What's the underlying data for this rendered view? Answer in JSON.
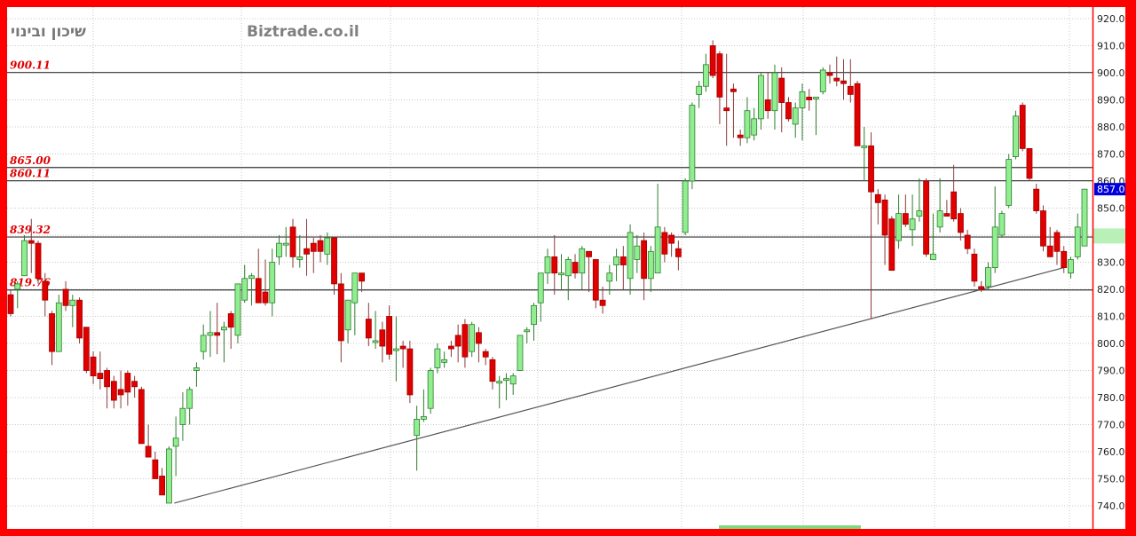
{
  "header": {
    "stock_name": "שיכון ובינוי",
    "brand": "Biztrade.co.il"
  },
  "chart_data": {
    "type": "candlestick",
    "title": "",
    "ylim": [
      735,
      923
    ],
    "y_ticks": [
      "920.0",
      "910.0",
      "900.0",
      "890.0",
      "880.0",
      "870.0",
      "860.0",
      "850.0",
      "840.0",
      "830.0",
      "820.0",
      "810.0",
      "800.0",
      "790.0",
      "780.0",
      "770.0",
      "760.0",
      "750.0",
      "740.0"
    ],
    "grid": true,
    "last_price_label": "857.0",
    "colors": {
      "up": "#90ee90",
      "down": "#e00000",
      "last_price_bg": "#0000dd",
      "frame": "#ff0000"
    },
    "levels": [
      {
        "value": 900.11,
        "label": "900.11"
      },
      {
        "value": 865.0,
        "label": "865.00"
      },
      {
        "value": 860.11,
        "label": "860.11"
      },
      {
        "value": 839.32,
        "label": "839.32"
      },
      {
        "value": 819.76,
        "label": "819.76"
      }
    ],
    "trendline": {
      "from": [
        23,
        741
      ],
      "to": [
        153,
        828
      ]
    },
    "ohlc": [
      [
        818,
        820,
        810,
        811
      ],
      [
        820,
        823,
        813,
        822
      ],
      [
        825,
        840,
        825,
        838
      ],
      [
        838,
        846,
        826,
        837
      ],
      [
        837,
        838,
        822,
        824
      ],
      [
        823,
        826,
        810,
        816
      ],
      [
        811,
        812,
        792,
        797
      ],
      [
        797,
        818,
        797,
        815
      ],
      [
        820,
        823,
        812,
        814
      ],
      [
        814,
        818,
        806,
        816
      ],
      [
        816,
        817,
        800,
        802
      ],
      [
        806,
        806,
        789,
        790
      ],
      [
        795,
        797,
        785,
        788
      ],
      [
        789,
        797,
        783,
        787
      ],
      [
        790,
        791,
        776,
        784
      ],
      [
        786,
        788,
        776,
        779
      ],
      [
        783,
        790,
        776,
        781
      ],
      [
        789,
        790,
        777,
        782
      ],
      [
        786,
        788,
        780,
        784
      ],
      [
        783,
        784,
        763,
        763
      ],
      [
        762,
        770,
        758,
        758
      ],
      [
        757,
        760,
        750,
        750
      ],
      [
        751,
        754,
        744,
        744
      ],
      [
        741,
        762,
        741,
        761
      ],
      [
        762,
        773,
        751,
        765
      ],
      [
        770,
        782,
        764,
        776
      ],
      [
        776,
        784,
        770,
        783
      ],
      [
        790,
        793,
        784,
        791
      ],
      [
        797,
        807,
        794,
        803
      ],
      [
        803,
        812,
        795,
        804
      ],
      [
        804,
        815,
        796,
        803
      ],
      [
        805,
        808,
        793,
        806
      ],
      [
        811,
        812,
        798,
        806
      ],
      [
        803,
        822,
        800,
        822
      ],
      [
        816,
        829,
        815,
        824
      ],
      [
        824,
        826,
        814,
        825
      ],
      [
        824,
        835,
        815,
        815
      ],
      [
        819,
        831,
        814,
        815
      ],
      [
        815,
        835,
        810,
        830
      ],
      [
        832,
        840,
        829,
        837
      ],
      [
        837,
        843,
        832,
        837
      ],
      [
        843,
        846,
        828,
        832
      ],
      [
        831,
        840,
        828,
        832
      ],
      [
        835,
        846,
        825,
        833
      ],
      [
        837,
        839,
        826,
        834
      ],
      [
        838,
        840,
        830,
        834
      ],
      [
        833,
        841,
        829,
        839
      ],
      [
        839,
        839,
        818,
        822
      ],
      [
        822,
        826,
        793,
        801
      ],
      [
        805,
        816,
        800,
        816
      ],
      [
        815,
        826,
        803,
        826
      ],
      [
        826,
        826,
        819,
        823
      ],
      [
        809,
        815,
        799,
        802
      ],
      [
        801,
        812,
        798,
        801
      ],
      [
        805,
        808,
        793,
        799
      ],
      [
        810,
        814,
        794,
        796
      ],
      [
        798,
        810,
        786,
        798
      ],
      [
        799,
        801,
        791,
        798
      ],
      [
        798,
        801,
        778,
        781
      ],
      [
        766,
        777,
        753,
        772
      ],
      [
        772,
        783,
        771,
        773
      ],
      [
        776,
        791,
        774,
        790
      ],
      [
        791,
        800,
        789,
        798
      ],
      [
        793,
        797,
        791,
        794
      ],
      [
        799,
        801,
        795,
        798
      ],
      [
        803,
        807,
        793,
        799
      ],
      [
        807,
        809,
        791,
        795
      ],
      [
        797,
        808,
        795,
        807
      ],
      [
        804,
        806,
        793,
        800
      ],
      [
        797,
        798,
        792,
        795
      ],
      [
        794,
        795,
        783,
        786
      ],
      [
        786,
        788,
        776,
        786
      ],
      [
        787,
        789,
        779,
        787
      ],
      [
        785,
        789,
        781,
        788
      ],
      [
        790,
        803,
        790,
        803
      ],
      [
        805,
        806,
        800,
        805
      ],
      [
        807,
        815,
        801,
        814
      ],
      [
        815,
        826,
        808,
        826
      ],
      [
        826,
        835,
        822,
        832
      ],
      [
        832,
        840,
        818,
        826
      ],
      [
        826,
        833,
        820,
        826
      ],
      [
        825,
        832,
        816,
        831
      ],
      [
        830,
        833,
        824,
        826
      ],
      [
        826,
        836,
        820,
        835
      ],
      [
        834,
        834,
        819,
        832
      ],
      [
        831,
        831,
        813,
        816
      ],
      [
        816,
        821,
        811,
        814
      ],
      [
        823,
        829,
        818,
        826
      ],
      [
        829,
        835,
        823,
        832
      ],
      [
        832,
        836,
        820,
        829
      ],
      [
        824,
        844,
        818,
        841
      ],
      [
        831,
        840,
        826,
        836
      ],
      [
        838,
        841,
        816,
        824
      ],
      [
        824,
        836,
        819,
        834
      ],
      [
        826,
        859,
        826,
        843
      ],
      [
        841,
        843,
        830,
        833
      ],
      [
        840,
        841,
        832,
        837
      ],
      [
        835,
        838,
        827,
        832
      ],
      [
        841,
        861,
        840,
        860
      ],
      [
        860,
        889,
        857,
        888
      ],
      [
        892,
        897,
        887,
        895
      ],
      [
        895,
        907,
        893,
        903
      ],
      [
        910,
        912,
        898,
        899
      ],
      [
        907,
        908,
        881,
        891
      ],
      [
        887,
        907,
        873,
        886
      ],
      [
        894,
        896,
        876,
        893
      ],
      [
        877,
        879,
        873,
        876
      ],
      [
        876,
        891,
        874,
        886
      ],
      [
        877,
        887,
        875,
        883
      ],
      [
        883,
        900,
        879,
        899
      ],
      [
        890,
        900,
        883,
        886
      ],
      [
        886,
        903,
        879,
        900
      ],
      [
        898,
        902,
        878,
        889
      ],
      [
        889,
        891,
        882,
        883
      ],
      [
        881,
        889,
        876,
        887
      ],
      [
        887,
        896,
        875,
        893
      ],
      [
        891,
        894,
        886,
        890
      ],
      [
        891,
        891,
        877,
        891
      ],
      [
        893,
        902,
        892,
        901
      ],
      [
        900,
        903,
        896,
        899
      ],
      [
        898,
        906,
        895,
        897
      ],
      [
        897,
        905,
        890,
        896
      ],
      [
        895,
        905,
        889,
        892
      ],
      [
        896,
        897,
        873,
        873
      ],
      [
        873,
        880,
        860,
        873
      ],
      [
        873,
        878,
        809,
        856
      ],
      [
        855,
        857,
        844,
        852
      ],
      [
        853,
        855,
        829,
        840
      ],
      [
        846,
        847,
        827,
        827
      ],
      [
        838,
        855,
        835,
        848
      ],
      [
        848,
        855,
        843,
        844
      ],
      [
        842,
        855,
        836,
        846
      ],
      [
        847,
        861,
        845,
        849
      ],
      [
        860,
        861,
        832,
        833
      ],
      [
        831,
        848,
        831,
        833
      ],
      [
        843,
        861,
        841,
        849
      ],
      [
        848,
        853,
        847,
        847
      ],
      [
        856,
        866,
        845,
        846
      ],
      [
        848,
        850,
        838,
        841
      ],
      [
        840,
        842,
        833,
        835
      ],
      [
        833,
        835,
        821,
        823
      ],
      [
        821,
        823,
        819,
        820
      ],
      [
        821,
        830,
        820,
        828
      ],
      [
        828,
        858,
        826,
        843
      ],
      [
        840,
        849,
        839,
        848
      ],
      [
        851,
        870,
        850,
        868
      ],
      [
        869,
        886,
        868,
        884
      ],
      [
        888,
        889,
        871,
        872
      ],
      [
        872,
        872,
        860,
        861
      ],
      [
        857,
        859,
        848,
        849
      ],
      [
        849,
        851,
        834,
        836
      ],
      [
        836,
        843,
        832,
        832
      ],
      [
        841,
        842,
        829,
        834
      ],
      [
        834,
        836,
        826,
        828
      ],
      [
        826,
        832,
        824,
        831
      ],
      [
        832,
        848,
        831,
        843
      ],
      [
        836,
        857,
        836,
        857
      ]
    ]
  }
}
